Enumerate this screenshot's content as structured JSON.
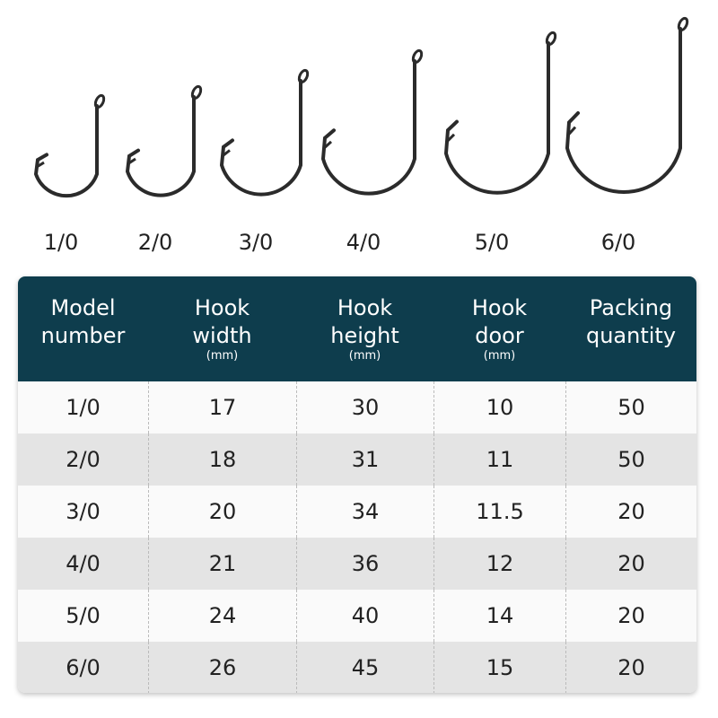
{
  "hooks": [
    {
      "label": "1/0"
    },
    {
      "label": "2/0"
    },
    {
      "label": "3/0"
    },
    {
      "label": "4/0"
    },
    {
      "label": "5/0"
    },
    {
      "label": "6/0"
    }
  ],
  "table": {
    "header": [
      {
        "lines": [
          "Model",
          "number"
        ]
      },
      {
        "lines": [
          "Hook",
          "width"
        ],
        "unit": "(mm)"
      },
      {
        "lines": [
          "Hook",
          "height"
        ],
        "unit": "(mm)"
      },
      {
        "lines": [
          "Hook",
          "door"
        ],
        "unit": "(mm)"
      },
      {
        "lines": [
          "Packing",
          "quantity"
        ]
      }
    ],
    "rows": [
      [
        "1/0",
        17,
        30,
        10,
        50
      ],
      [
        "2/0",
        18,
        31,
        11,
        50
      ],
      [
        "3/0",
        20,
        34,
        11.5,
        20
      ],
      [
        "4/0",
        21,
        36,
        12,
        20
      ],
      [
        "5/0",
        24,
        40,
        14,
        20
      ],
      [
        "6/0",
        26,
        45,
        15,
        20
      ]
    ]
  }
}
